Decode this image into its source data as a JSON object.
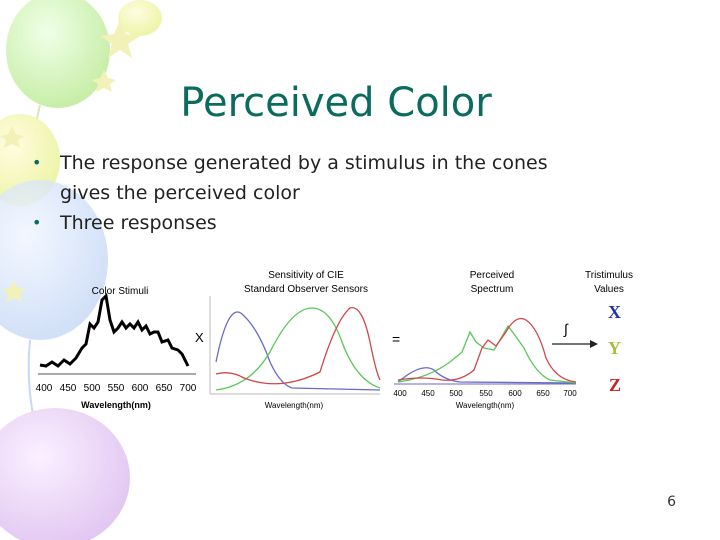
{
  "slide": {
    "title": "Perceived Color",
    "bullets": [
      {
        "line1": "The response generated by a stimulus in the cones",
        "line2": "gives the perceived color"
      },
      {
        "line1": "Three responses"
      }
    ],
    "page_number": "6"
  },
  "figure": {
    "stimuli_title": "Color Stimuli",
    "stimuli_xlabel": "Wavelength(nm)",
    "stimuli_ticks": [
      "400",
      "450",
      "500",
      "550",
      "600",
      "650",
      "700"
    ],
    "times_symbol": "X",
    "sensors_title_1": "Sensitivity of CIE",
    "sensors_title_2": "Standard Observer Sensors",
    "sensors_xlabel": "Wavelength(nm)",
    "equals_symbol": "=",
    "perceived_title_1": "Perceived",
    "perceived_title_2": "Spectrum",
    "perceived_xlabel": "Wavelength(nm)",
    "perceived_ticks": [
      "400",
      "450",
      "500",
      "550",
      "600",
      "650",
      "700"
    ],
    "integral_symbol": "∫",
    "tristimulus_title_1": "Tristimulus",
    "tristimulus_title_2": "Values",
    "x_label": "X",
    "y_label": "Y",
    "z_label": "Z",
    "colors": {
      "x": "#2233aa",
      "y": "#a8c040",
      "z": "#cc2222"
    }
  }
}
